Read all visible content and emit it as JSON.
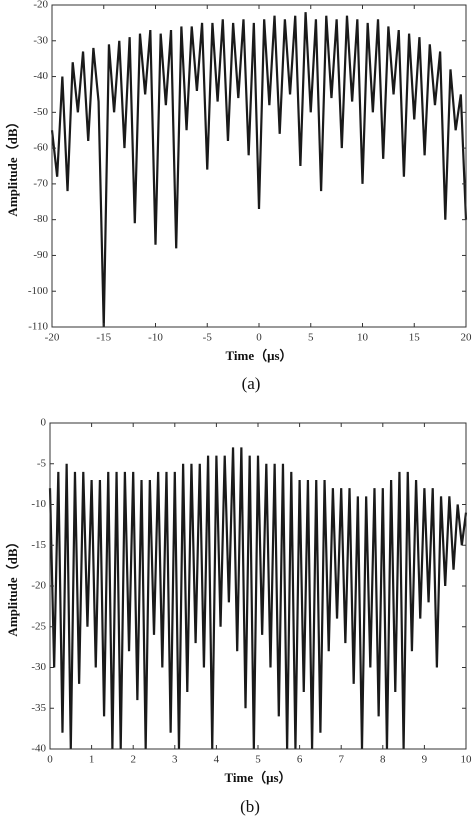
{
  "chart_data": [
    {
      "type": "line",
      "xlabel": "Time（μs）",
      "ylabel": "Amplitude（dB）",
      "caption": "(a)",
      "x": [
        -20,
        -19.5,
        -19,
        -18.5,
        -18,
        -17.5,
        -17,
        -16.5,
        -16,
        -15.5,
        -15,
        -14.5,
        -14,
        -13.5,
        -13,
        -12.5,
        -12,
        -11.5,
        -11,
        -10.5,
        -10,
        -9.5,
        -9,
        -8.5,
        -8,
        -7.5,
        -7,
        -6.5,
        -6,
        -5.5,
        -5,
        -4.5,
        -4,
        -3.5,
        -3,
        -2.5,
        -2,
        -1.5,
        -1,
        -0.5,
        0,
        0.5,
        1,
        1.5,
        2,
        2.5,
        3,
        3.5,
        4,
        4.5,
        5,
        5.5,
        6,
        6.5,
        7,
        7.5,
        8,
        8.5,
        9,
        9.5,
        10,
        10.5,
        11,
        11.5,
        12,
        12.5,
        13,
        13.5,
        14,
        14.5,
        15,
        15.5,
        16,
        16.5,
        17,
        17.5,
        18,
        18.5,
        19,
        19.5,
        20
      ],
      "values": [
        -55,
        -68,
        -40,
        -72,
        -36,
        -50,
        -33,
        -58,
        -32,
        -47,
        -110,
        -31,
        -50,
        -30,
        -60,
        -29,
        -81,
        -28,
        -45,
        -27,
        -87,
        -28,
        -48,
        -27,
        -88,
        -26,
        -55,
        -26,
        -44,
        -25,
        -66,
        -25,
        -47,
        -24,
        -58,
        -25,
        -46,
        -24,
        -62,
        -25,
        -77,
        -24,
        -48,
        -23,
        -56,
        -24,
        -45,
        -23,
        -65,
        -22,
        -50,
        -24,
        -72,
        -23,
        -46,
        -24,
        -60,
        -23,
        -47,
        -24,
        -70,
        -25,
        -50,
        -24,
        -63,
        -26,
        -45,
        -27,
        -68,
        -28,
        -52,
        -29,
        -62,
        -31,
        -48,
        -33,
        -80,
        -38,
        -55,
        -45,
        -80
      ],
      "color": "#1a1a1a",
      "xlim": [
        -20,
        20
      ],
      "ylim": [
        -110,
        -20
      ],
      "xticks": [
        -20,
        -15,
        -10,
        -5,
        0,
        5,
        10,
        15,
        20
      ],
      "yticks": [
        -110,
        -100,
        -90,
        -80,
        -70,
        -60,
        -50,
        -40,
        -30,
        -20
      ]
    },
    {
      "type": "line",
      "xlabel": "Time（μs）",
      "ylabel": "Amplitude（dB）",
      "caption": "(b)",
      "x": [
        0,
        0.1,
        0.2,
        0.3,
        0.4,
        0.5,
        0.6,
        0.7,
        0.8,
        0.9,
        1,
        1.1,
        1.2,
        1.3,
        1.4,
        1.5,
        1.6,
        1.7,
        1.8,
        1.9,
        2,
        2.1,
        2.2,
        2.3,
        2.4,
        2.5,
        2.6,
        2.7,
        2.8,
        2.9,
        3,
        3.1,
        3.2,
        3.3,
        3.4,
        3.5,
        3.6,
        3.7,
        3.8,
        3.9,
        4,
        4.1,
        4.2,
        4.3,
        4.4,
        4.5,
        4.6,
        4.7,
        4.8,
        4.9,
        5,
        5.1,
        5.2,
        5.3,
        5.4,
        5.5,
        5.6,
        5.7,
        5.8,
        5.9,
        6,
        6.1,
        6.2,
        6.3,
        6.4,
        6.5,
        6.6,
        6.7,
        6.8,
        6.9,
        7,
        7.1,
        7.2,
        7.3,
        7.4,
        7.5,
        7.6,
        7.7,
        7.8,
        7.9,
        8,
        8.1,
        8.2,
        8.3,
        8.4,
        8.5,
        8.6,
        8.7,
        8.8,
        8.9,
        9,
        9.1,
        9.2,
        9.3,
        9.4,
        9.5,
        9.6,
        9.7,
        9.8,
        9.9,
        10
      ],
      "values": [
        -8,
        -30,
        -6,
        -38,
        -5,
        -40,
        -6,
        -32,
        -6,
        -25,
        -7,
        -30,
        -7,
        -36,
        -6,
        -40,
        -6,
        -40,
        -6,
        -28,
        -6,
        -34,
        -7,
        -40,
        -7,
        -26,
        -6,
        -30,
        -6,
        -38,
        -6,
        -40,
        -5,
        -33,
        -5,
        -27,
        -5,
        -30,
        -4,
        -40,
        -4,
        -25,
        -4,
        -22,
        -3,
        -28,
        -3,
        -35,
        -4,
        -40,
        -4,
        -26,
        -5,
        -30,
        -5,
        -36,
        -5,
        -40,
        -6,
        -40,
        -7,
        -33,
        -7,
        -40,
        -7,
        -38,
        -7,
        -28,
        -8,
        -24,
        -8,
        -27,
        -8,
        -32,
        -9,
        -40,
        -9,
        -30,
        -8,
        -36,
        -8,
        -40,
        -7,
        -33,
        -6,
        -40,
        -6,
        -28,
        -7,
        -24,
        -8,
        -22,
        -8,
        -30,
        -9,
        -20,
        -9,
        -18,
        -10,
        -15,
        -11
      ],
      "color": "#1a1a1a",
      "xlim": [
        0,
        10
      ],
      "ylim": [
        -40,
        0
      ],
      "xticks": [
        0,
        1,
        2,
        3,
        4,
        5,
        6,
        7,
        8,
        9,
        10
      ],
      "yticks": [
        -40,
        -35,
        -30,
        -25,
        -20,
        -15,
        -10,
        -5,
        0
      ]
    }
  ]
}
